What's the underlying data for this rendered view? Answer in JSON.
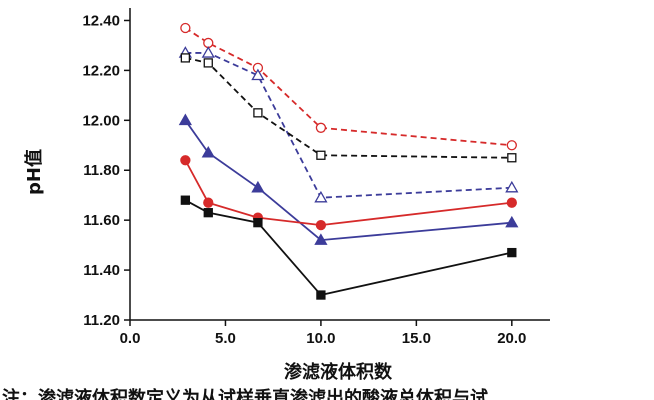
{
  "chart_data": {
    "type": "line",
    "xlabel": "渗滤液体积数",
    "ylabel": "pH值",
    "xlim": [
      0,
      22
    ],
    "ylim": [
      11.2,
      12.45
    ],
    "x_ticks": [
      "0.0",
      "5.0",
      "10.0",
      "15.0",
      "20.0"
    ],
    "y_ticks": [
      "11.20",
      "11.40",
      "11.60",
      "11.80",
      "12.00",
      "12.20",
      "12.40"
    ],
    "grid": false,
    "legend": "none",
    "series": [
      {
        "marker": "circle-open",
        "color": "#d62a2a",
        "dash": true,
        "points": [
          [
            2.9,
            12.37
          ],
          [
            4.1,
            12.31
          ],
          [
            6.7,
            12.21
          ],
          [
            10.0,
            11.97
          ],
          [
            20.0,
            11.9
          ]
        ]
      },
      {
        "marker": "triangle-open",
        "color": "#3c3c9a",
        "dash": true,
        "points": [
          [
            2.9,
            12.27
          ],
          [
            4.1,
            12.27
          ],
          [
            6.7,
            12.18
          ],
          [
            10.0,
            11.69
          ],
          [
            20.0,
            11.73
          ]
        ]
      },
      {
        "marker": "square-open",
        "color": "#111111",
        "dash": true,
        "points": [
          [
            2.9,
            12.25
          ],
          [
            4.1,
            12.23
          ],
          [
            6.7,
            12.03
          ],
          [
            10.0,
            11.86
          ],
          [
            20.0,
            11.85
          ]
        ]
      },
      {
        "marker": "triangle-filled",
        "color": "#3c3c9a",
        "dash": false,
        "points": [
          [
            2.9,
            12.0
          ],
          [
            4.1,
            11.87
          ],
          [
            6.7,
            11.73
          ],
          [
            10.0,
            11.52
          ],
          [
            20.0,
            11.59
          ]
        ]
      },
      {
        "marker": "circle-filled",
        "color": "#d62a2a",
        "dash": false,
        "points": [
          [
            2.9,
            11.84
          ],
          [
            4.1,
            11.67
          ],
          [
            6.7,
            11.61
          ],
          [
            10.0,
            11.58
          ],
          [
            20.0,
            11.67
          ]
        ]
      },
      {
        "marker": "square-filled",
        "color": "#111111",
        "dash": false,
        "points": [
          [
            2.9,
            11.68
          ],
          [
            4.1,
            11.63
          ],
          [
            6.7,
            11.59
          ],
          [
            10.0,
            11.3
          ],
          [
            20.0,
            11.47
          ]
        ]
      }
    ]
  },
  "note": {
    "text": "注：渗滤液体积数定义为从试样垂直渗滤出的酸液总体积与试"
  }
}
